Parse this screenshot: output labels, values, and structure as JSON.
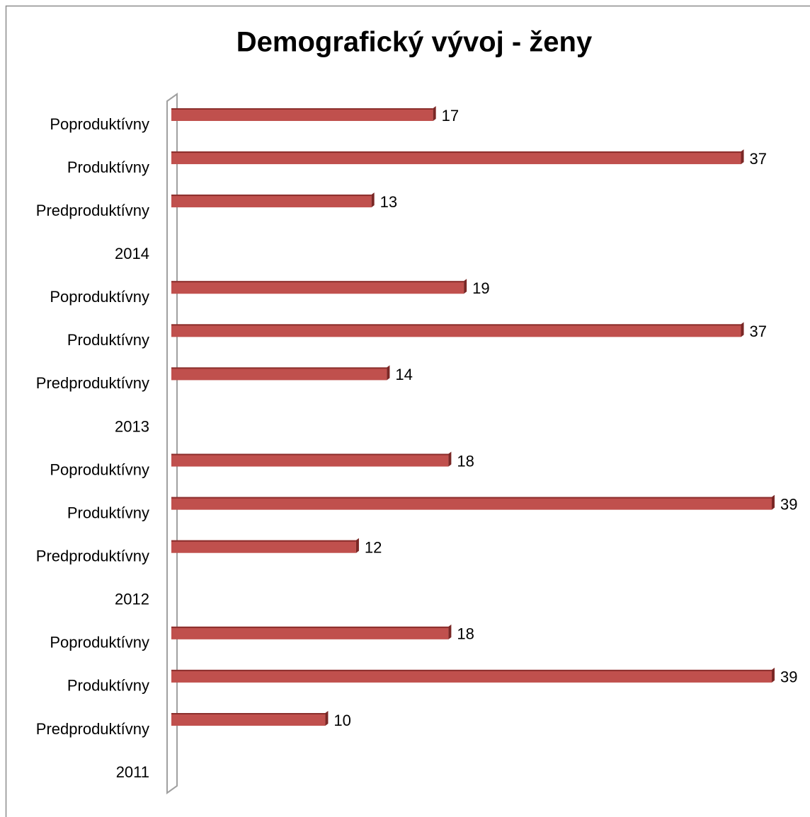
{
  "chart_data": {
    "type": "hbar",
    "title": "Demografický vývoj - ženy",
    "categories": [
      "Poproduktívny",
      "Produktívny",
      "Predproduktívny",
      "2014",
      "Poproduktívny",
      "Produktívny",
      "Predproduktívny",
      "2013",
      "Poproduktívny",
      "Produktívny",
      "Predproduktívny",
      "2012",
      "Poproduktívny",
      "Produktívny",
      "Predproduktívny",
      "2011"
    ],
    "values": [
      17,
      37,
      13,
      null,
      19,
      37,
      14,
      null,
      18,
      39,
      12,
      null,
      18,
      39,
      10,
      null
    ],
    "color": "#c0504d"
  }
}
